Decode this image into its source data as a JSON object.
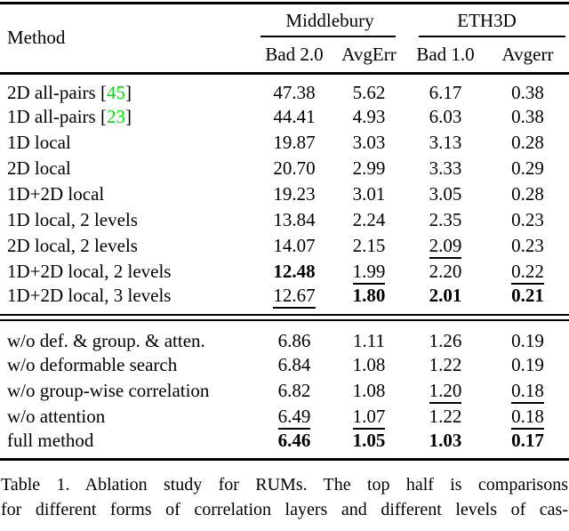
{
  "colors": {
    "background": "#ffffff",
    "text": "#000000",
    "citation_green": "#00dd00"
  },
  "table": {
    "corner_label": "Method",
    "groups": [
      {
        "label": "Middlebury",
        "columns": [
          "Bad 2.0",
          "AvgErr"
        ]
      },
      {
        "label": "ETH3D",
        "columns": [
          "Bad 1.0",
          "Avgerr"
        ]
      }
    ],
    "top_rows": [
      {
        "method": "2D all-pairs",
        "cite": "45",
        "values": [
          {
            "v": "47.38"
          },
          {
            "v": "5.62"
          },
          {
            "v": "6.17"
          },
          {
            "v": "0.38"
          }
        ]
      },
      {
        "method": "1D all-pairs",
        "cite": "23",
        "values": [
          {
            "v": "44.41"
          },
          {
            "v": "4.93"
          },
          {
            "v": "6.03"
          },
          {
            "v": "0.38"
          }
        ]
      },
      {
        "method": "1D local",
        "values": [
          {
            "v": "19.87"
          },
          {
            "v": "3.03"
          },
          {
            "v": "3.13"
          },
          {
            "v": "0.28"
          }
        ]
      },
      {
        "method": "2D local",
        "values": [
          {
            "v": "20.70"
          },
          {
            "v": "2.99"
          },
          {
            "v": "3.33"
          },
          {
            "v": "0.29"
          }
        ]
      },
      {
        "method": "1D+2D local",
        "values": [
          {
            "v": "19.23"
          },
          {
            "v": "3.01"
          },
          {
            "v": "3.05"
          },
          {
            "v": "0.28"
          }
        ]
      },
      {
        "method": "1D local, 2 levels",
        "values": [
          {
            "v": "13.84"
          },
          {
            "v": "2.24"
          },
          {
            "v": "2.35"
          },
          {
            "v": "0.23"
          }
        ]
      },
      {
        "method": "2D local, 2 levels",
        "values": [
          {
            "v": "14.07"
          },
          {
            "v": "2.15"
          },
          {
            "v": "2.09",
            "s": "u"
          },
          {
            "v": "0.23"
          }
        ]
      },
      {
        "method": "1D+2D local, 2 levels",
        "values": [
          {
            "v": "12.48",
            "s": "b"
          },
          {
            "v": "1.99",
            "s": "u"
          },
          {
            "v": "2.20"
          },
          {
            "v": "0.22",
            "s": "u"
          }
        ]
      },
      {
        "method": "1D+2D local, 3 levels",
        "values": [
          {
            "v": "12.67",
            "s": "u"
          },
          {
            "v": "1.80",
            "s": "b"
          },
          {
            "v": "2.01",
            "s": "b"
          },
          {
            "v": "0.21",
            "s": "b"
          }
        ]
      }
    ],
    "bottom_rows": [
      {
        "method": "w/o def. & group. & atten.",
        "values": [
          {
            "v": "6.86"
          },
          {
            "v": "1.11"
          },
          {
            "v": "1.26"
          },
          {
            "v": "0.19"
          }
        ]
      },
      {
        "method": "w/o deformable search",
        "values": [
          {
            "v": "6.84"
          },
          {
            "v": "1.08"
          },
          {
            "v": "1.22"
          },
          {
            "v": "0.19"
          }
        ]
      },
      {
        "method": "w/o group-wise correlation",
        "values": [
          {
            "v": "6.82"
          },
          {
            "v": "1.08"
          },
          {
            "v": "1.20",
            "s": "u"
          },
          {
            "v": "0.18",
            "s": "u"
          }
        ]
      },
      {
        "method": "w/o attention",
        "values": [
          {
            "v": "6.49",
            "s": "u"
          },
          {
            "v": "1.07",
            "s": "u"
          },
          {
            "v": "1.22"
          },
          {
            "v": "0.18",
            "s": "u"
          }
        ]
      },
      {
        "method": "full method",
        "values": [
          {
            "v": "6.46",
            "s": "b"
          },
          {
            "v": "1.05",
            "s": "b"
          },
          {
            "v": "1.03",
            "s": "b"
          },
          {
            "v": "0.17",
            "s": "b"
          }
        ]
      }
    ]
  },
  "caption": {
    "line1": "Table 1.  Ablation study for RUMs.  The top half is comparisons",
    "line2": "for different forms of correlation layers and different levels of cas-"
  }
}
